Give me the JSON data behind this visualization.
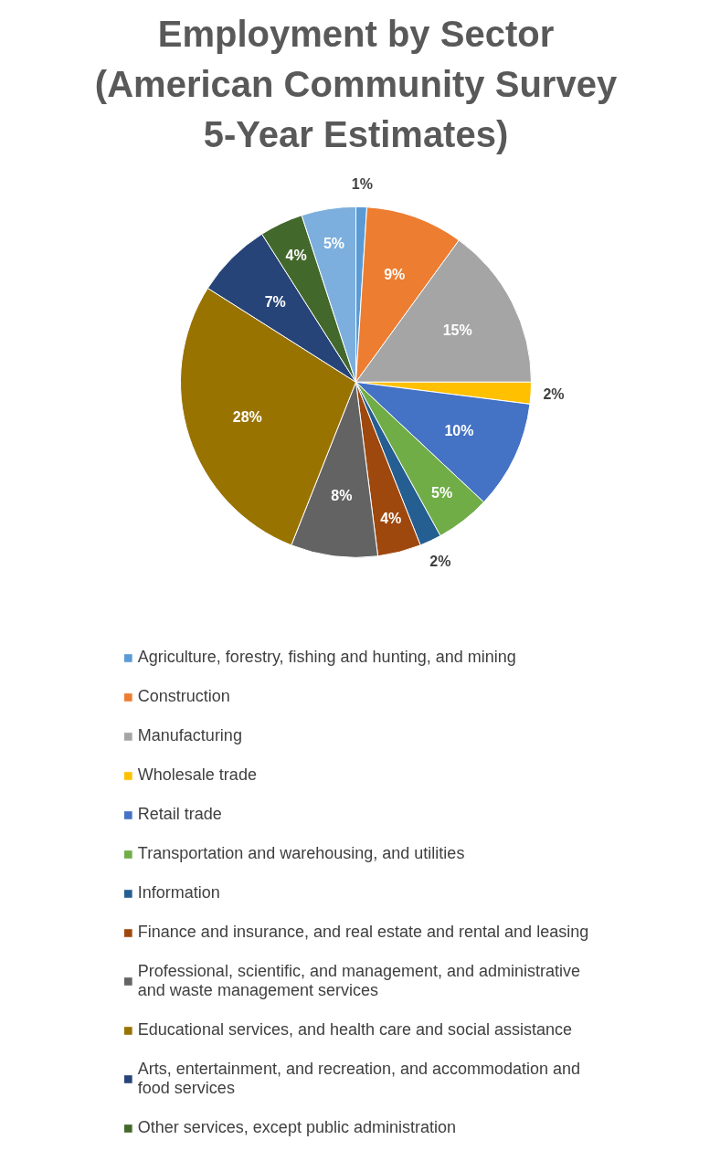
{
  "chart_data": {
    "type": "pie",
    "title": "Employment by Sector (American Community Survey 5-Year Estimates)",
    "categories": [
      "Agriculture, forestry, fishing and hunting, and mining",
      "Construction",
      "Manufacturing",
      "Wholesale trade",
      "Retail trade",
      "Transportation and warehousing, and utilities",
      "Information",
      "Finance and insurance, and real estate and rental and leasing",
      "Professional, scientific, and management, and administrative and waste management services",
      "Educational services, and health care and social assistance",
      "Arts, entertainment, and recreation, and accommodation and food services",
      "Other services, except public administration",
      null
    ],
    "values": [
      1,
      9,
      15,
      2,
      10,
      5,
      2,
      4,
      8,
      28,
      7,
      4,
      5
    ],
    "value_labels": [
      "1%",
      "9%",
      "15%",
      "2%",
      "10%",
      "5%",
      "2%",
      "4%",
      "8%",
      "28%",
      "7%",
      "4%",
      "5%"
    ],
    "colors": [
      "#5b9bd5",
      "#ed7d31",
      "#a5a5a5",
      "#ffc000",
      "#4472c4",
      "#70ad47",
      "#255e91",
      "#9e480e",
      "#636363",
      "#997300",
      "#264478",
      "#43682b",
      "#7cafdd"
    ],
    "legend": "bottom"
  }
}
